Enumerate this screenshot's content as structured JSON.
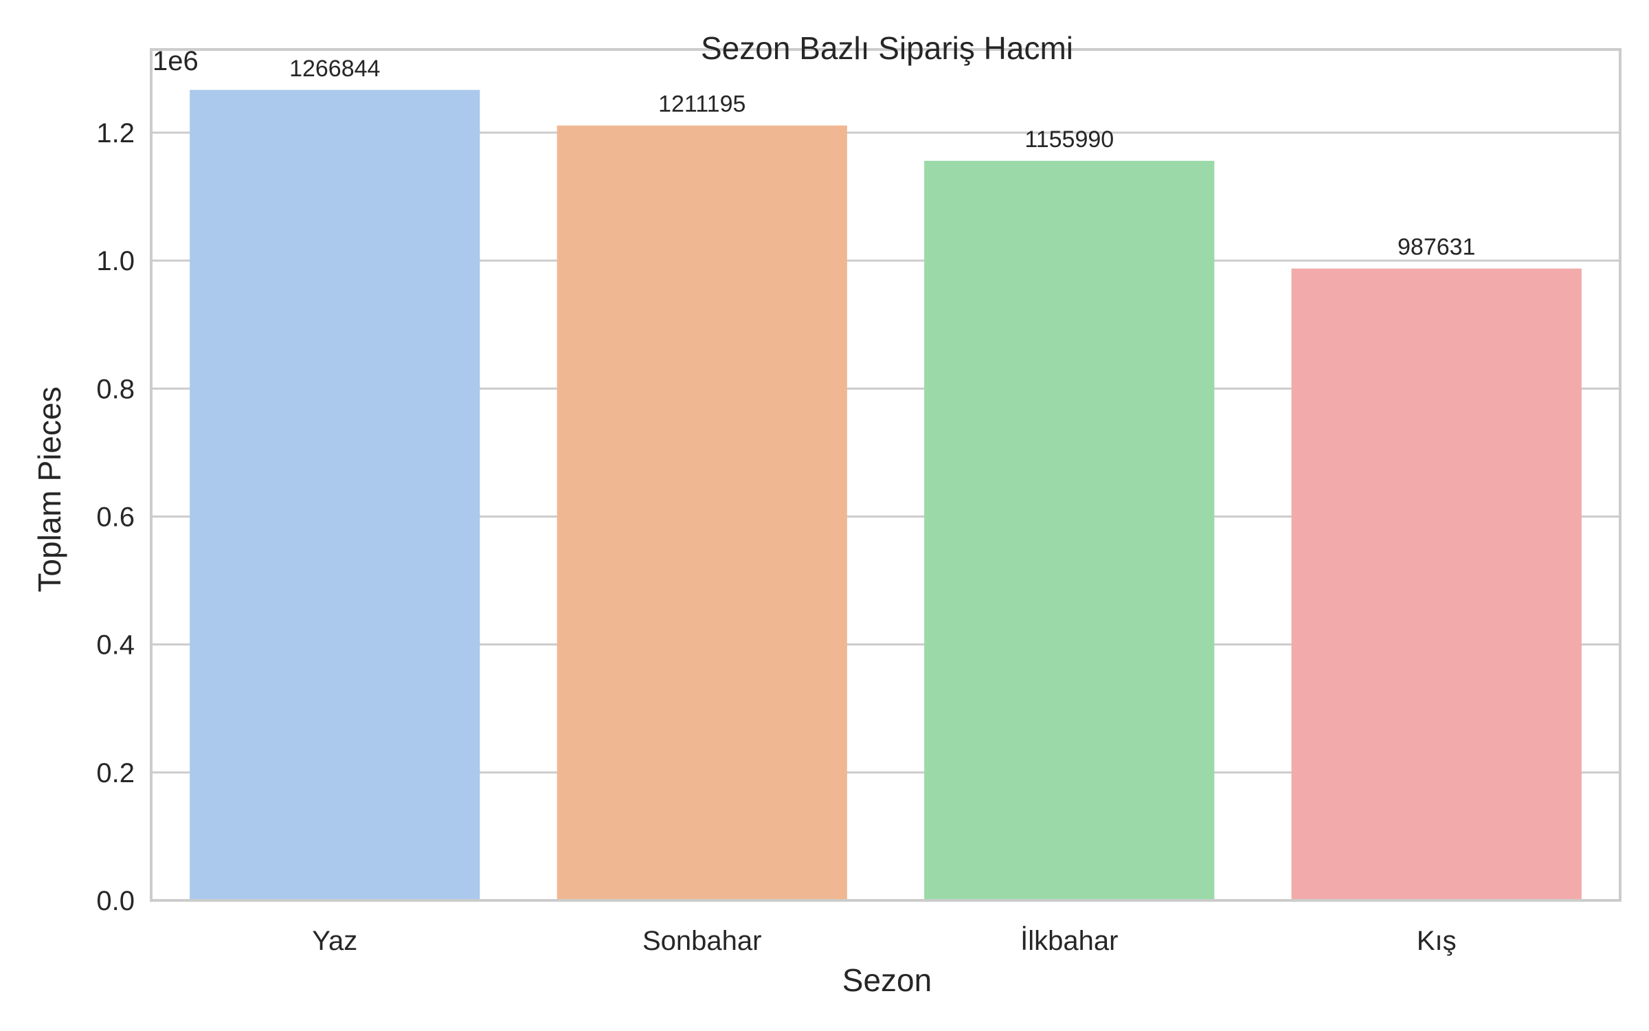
{
  "chart_data": {
    "type": "bar",
    "title": "Sezon Bazlı Sipariş Hacmi",
    "xlabel": "Sezon",
    "ylabel": "Toplam Pieces",
    "offset_text": "1e6",
    "categories": [
      "Yaz",
      "Sonbahar",
      "İlkbahar",
      "Kış"
    ],
    "values": [
      1266844,
      1211195,
      1155990,
      987631
    ],
    "data_labels": [
      "1266844",
      "1211195",
      "1155990",
      "987631"
    ],
    "colors": [
      "#abc9ec",
      "#f0b892",
      "#9bdaa8",
      "#f2abaa"
    ],
    "ylim": [
      0,
      1330000
    ],
    "yticks": [
      0,
      200000,
      400000,
      600000,
      800000,
      1000000,
      1200000
    ],
    "ytick_labels": [
      "0.0",
      "0.2",
      "0.4",
      "0.6",
      "0.8",
      "1.0",
      "1.2"
    ],
    "grid": true,
    "grid_axis": "y"
  }
}
